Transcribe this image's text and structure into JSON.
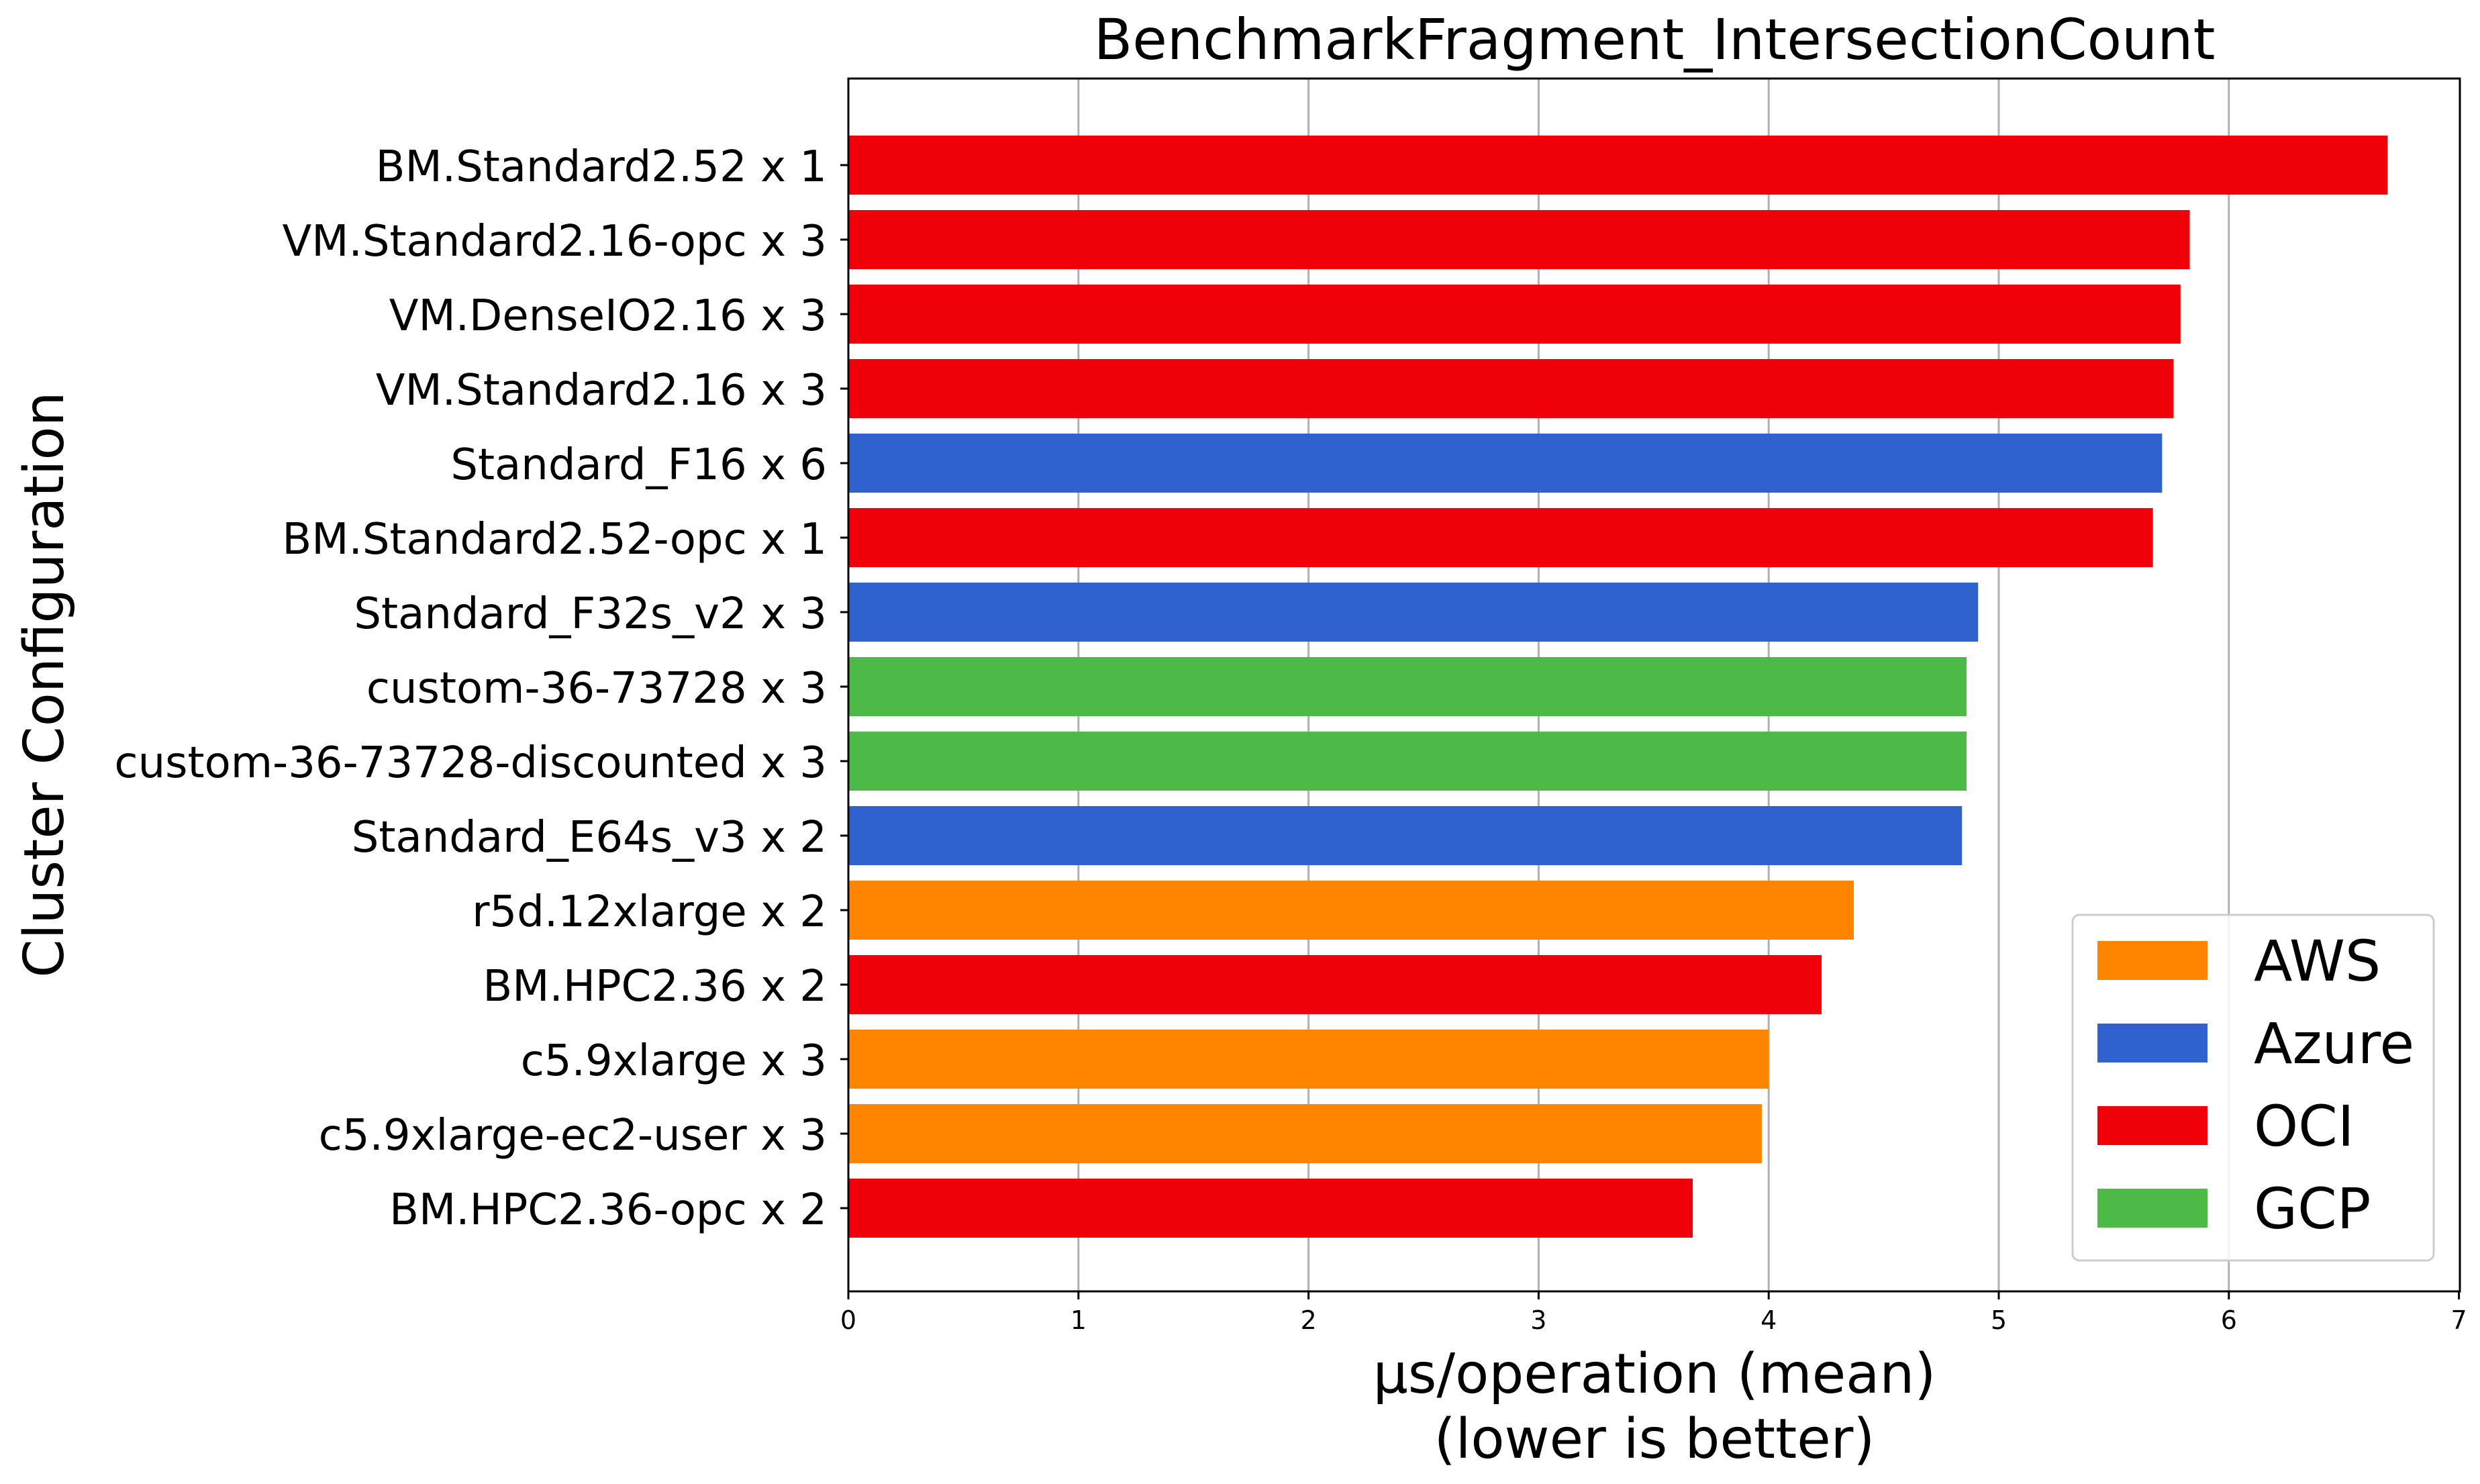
{
  "chart_data": {
    "type": "bar",
    "orientation": "horizontal",
    "title": "BenchmarkFragment_IntersectionCount",
    "xlabel_line1": "µs/operation (mean)",
    "xlabel_line2": "(lower is better)",
    "ylabel": "Cluster Configuration",
    "xlim": [
      0,
      7
    ],
    "xticks": [
      "0",
      "1",
      "2",
      "3",
      "4",
      "5",
      "6",
      "7"
    ],
    "grid": "vertical",
    "legend_position": "lower-right",
    "colors": {
      "AWS": "#ff8400",
      "Azure": "#2f62cf",
      "OCI": "#f00008",
      "GCP": "#4db947"
    },
    "legend": [
      "AWS",
      "Azure",
      "OCI",
      "GCP"
    ],
    "bars": [
      {
        "label": "BM.Standard2.52 x 1",
        "value": 6.69,
        "provider": "OCI"
      },
      {
        "label": "VM.Standard2.16-opc x 3",
        "value": 5.83,
        "provider": "OCI"
      },
      {
        "label": "VM.DenseIO2.16 x 3",
        "value": 5.79,
        "provider": "OCI"
      },
      {
        "label": "VM.Standard2.16 x 3",
        "value": 5.76,
        "provider": "OCI"
      },
      {
        "label": "Standard_F16 x 6",
        "value": 5.71,
        "provider": "Azure"
      },
      {
        "label": "BM.Standard2.52-opc x 1",
        "value": 5.67,
        "provider": "OCI"
      },
      {
        "label": "Standard_F32s_v2 x 3",
        "value": 4.91,
        "provider": "Azure"
      },
      {
        "label": "custom-36-73728 x 3",
        "value": 4.86,
        "provider": "GCP"
      },
      {
        "label": "custom-36-73728-discounted x 3",
        "value": 4.86,
        "provider": "GCP"
      },
      {
        "label": "Standard_E64s_v3 x 2",
        "value": 4.84,
        "provider": "Azure"
      },
      {
        "label": "r5d.12xlarge x 2",
        "value": 4.37,
        "provider": "AWS"
      },
      {
        "label": "BM.HPC2.36 x 2",
        "value": 4.23,
        "provider": "OCI"
      },
      {
        "label": "c5.9xlarge x 3",
        "value": 4.0,
        "provider": "AWS"
      },
      {
        "label": "c5.9xlarge-ec2-user x 3",
        "value": 3.97,
        "provider": "AWS"
      },
      {
        "label": "BM.HPC2.36-opc x 2",
        "value": 3.67,
        "provider": "OCI"
      }
    ]
  }
}
